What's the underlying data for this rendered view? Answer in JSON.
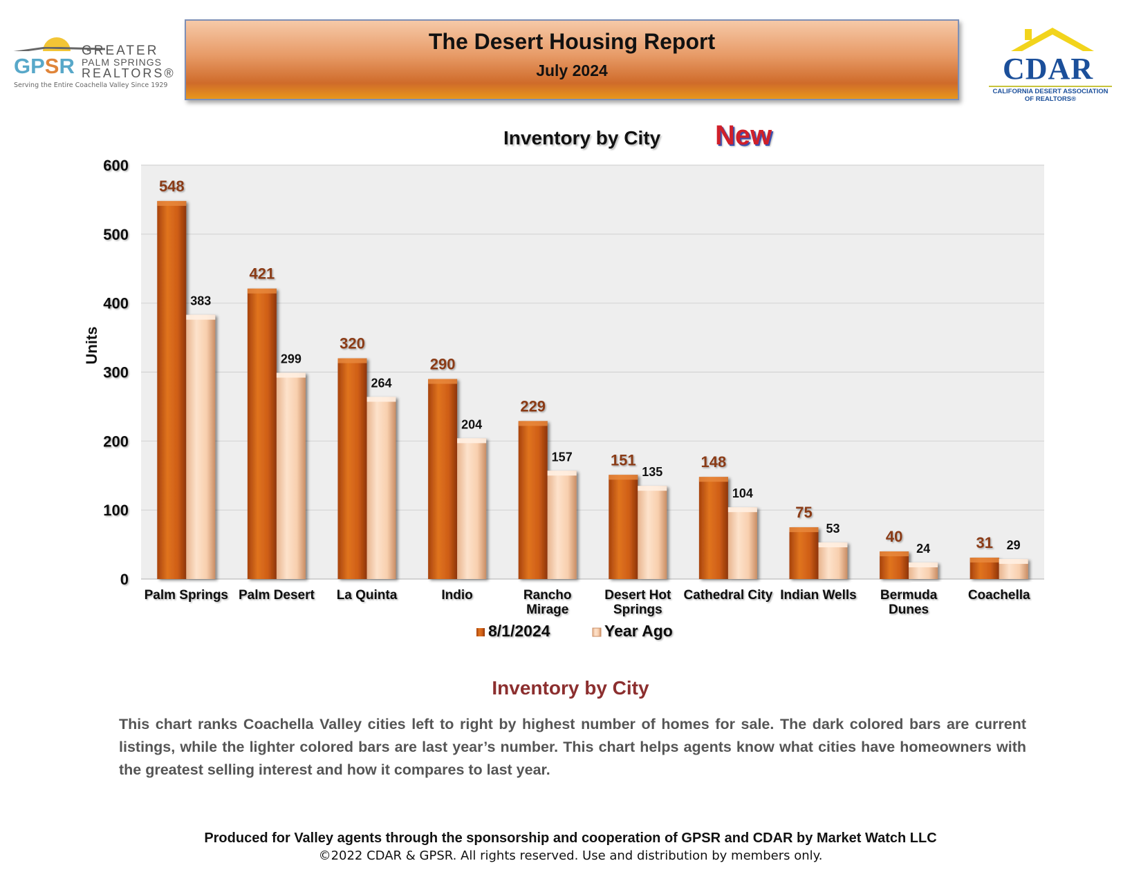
{
  "header": {
    "title": "The Desert Housing Report",
    "subtitle": "July 2024"
  },
  "logos": {
    "gpsr": {
      "letters_1": "GP",
      "letters_2": "S",
      "letters_3": "R",
      "line1": "GREATER",
      "line2": "PALM SPRINGS",
      "line3": "REALTORS®",
      "tagline": "Serving the Entire Coachella Valley Since 1929"
    },
    "cdar": {
      "word": "CDAR",
      "line1": "CALIFORNIA DESERT ASSOCIATION",
      "line2": "OF REALTORS®"
    }
  },
  "chart_data": {
    "type": "bar",
    "title": "Inventory by City",
    "badge": "New",
    "ylabel": "Units",
    "xlabel": "",
    "ylim": [
      0,
      600
    ],
    "yticks": [
      0,
      100,
      200,
      300,
      400,
      500,
      600
    ],
    "grid": true,
    "legend_position": "bottom",
    "categories": [
      [
        "Palm Springs"
      ],
      [
        "Palm Desert"
      ],
      [
        "La Quinta"
      ],
      [
        "Indio"
      ],
      [
        "Rancho",
        "Mirage"
      ],
      [
        "Desert Hot",
        "Springs"
      ],
      [
        "Cathedral City"
      ],
      [
        "Indian Wells"
      ],
      [
        "Bermuda",
        "Dunes"
      ],
      [
        "Coachella"
      ]
    ],
    "series": [
      {
        "name": "8/1/2024",
        "values": [
          548,
          421,
          320,
          290,
          229,
          151,
          148,
          75,
          40,
          31
        ],
        "color": "#cf5e17"
      },
      {
        "name": "Year Ago",
        "values": [
          383,
          299,
          264,
          204,
          157,
          135,
          104,
          53,
          24,
          29
        ],
        "color": "#f8cfae"
      }
    ],
    "label_colors": {
      "current": "#8a3a16",
      "prior": "#111111"
    }
  },
  "section": {
    "title": "Inventory by City",
    "description": "This chart ranks Coachella Valley cities left to right by highest number of homes for sale. The dark colored bars are current listings, while the lighter colored bars are last year’s number. This chart helps agents know what cities have homeowners with the greatest selling interest and how it compares to last year."
  },
  "footer": {
    "line1": "Produced for Valley agents through the sponsorship and cooperation of GPSR and CDAR by Market Watch LLC",
    "line2": "©2022 CDAR & GPSR.  All rights reserved.  Use and distribution by members only."
  }
}
